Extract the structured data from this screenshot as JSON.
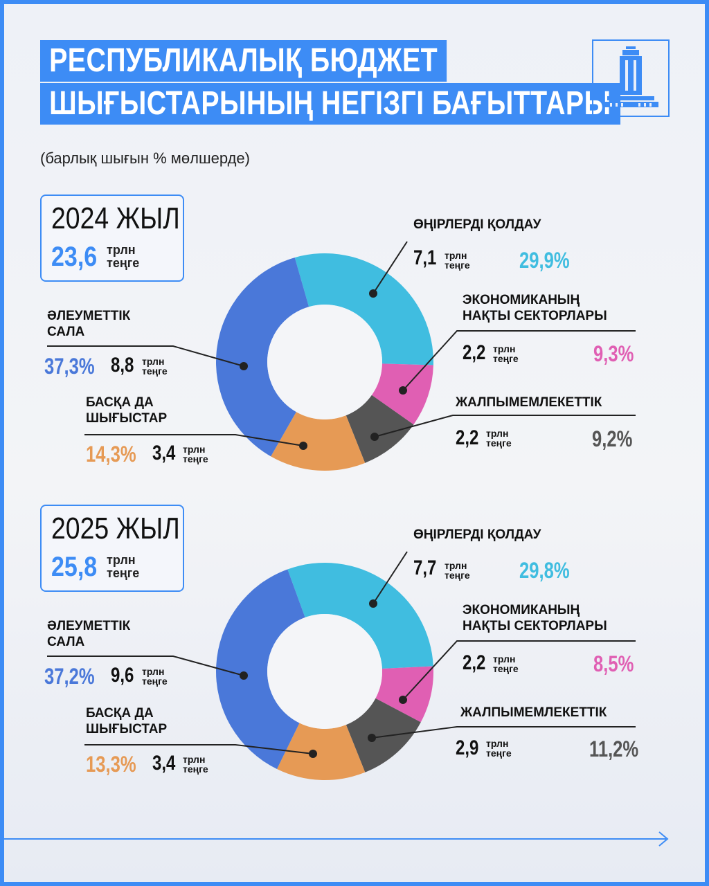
{
  "title": {
    "line1": "РЕСПУБЛИКАЛЫҚ БЮДЖЕТ",
    "line2": "ШЫҒЫСТАРЫНЫҢ НЕГІЗГІ БАҒЫТТАРЫ"
  },
  "subtitle": "(барлық шығын % мөлшерде)",
  "colors": {
    "accent": "#3d8cf5",
    "regions": "#40bde0",
    "economy": "#e05fb3",
    "general": "#555555",
    "other": "#e69a55",
    "social": "#4a78d9"
  },
  "years": [
    {
      "year_label": "2024 ЖЫЛ",
      "total": "23,6",
      "unit": "трлн\nтеңге"
    },
    {
      "year_label": "2025 ЖЫЛ",
      "total": "25,8",
      "unit": "трлн\nтеңге"
    }
  ],
  "labels": {
    "regions": "ӨҢІРЛЕРДІ ҚОЛДАУ",
    "economy": "ЭКОНОМИКАНЫҢ\nНАҚТЫ СЕКТОРЛАРЫ",
    "general": "ЖАЛПЫМЕМЛЕКЕТТІК",
    "other": "БАСҚА ДА\nШЫҒЫСТАР",
    "social": "ӘЛЕУМЕТТІК\nСАЛА"
  },
  "chart_data": [
    {
      "type": "pie",
      "title": "2024 ЖЫЛ",
      "categories": [
        "ӨҢІРЛЕРДІ ҚОЛДАУ",
        "ЭКОНОМИКАНЫҢ НАҚТЫ СЕКТОРЛАРЫ",
        "ЖАЛПЫМЕМЛЕКЕТТІК",
        "БАСҚА ДА ШЫҒЫСТАР",
        "ӘЛЕУМЕТТІК САЛА"
      ],
      "values": [
        29.9,
        9.3,
        9.2,
        14.3,
        37.3
      ],
      "amounts": [
        7.1,
        2.2,
        2.2,
        3.4,
        8.8
      ],
      "pct_labels": [
        "29,9%",
        "9,3%",
        "9,2%",
        "14,3%",
        "37,3%"
      ],
      "amount_labels": [
        "7,1",
        "2,2",
        "2,2",
        "3,4",
        "8,8"
      ]
    },
    {
      "type": "pie",
      "title": "2025 ЖЫЛ",
      "categories": [
        "ӨҢІРЛЕРДІ ҚОЛДАУ",
        "ЭКОНОМИКАНЫҢ НАҚТЫ СЕКТОРЛАРЫ",
        "ЖАЛПЫМЕМЛЕКЕТТІК",
        "БАСҚА ДА ШЫҒЫСТАР",
        "ӘЛЕУМЕТТІК САЛА"
      ],
      "values": [
        29.8,
        8.5,
        11.2,
        13.3,
        37.2
      ],
      "amounts": [
        7.7,
        2.2,
        2.9,
        3.4,
        9.6
      ],
      "pct_labels": [
        "29,8%",
        "8,5%",
        "11,2%",
        "13,3%",
        "37,2%"
      ],
      "amount_labels": [
        "7,7",
        "2,2",
        "2,9",
        "3,4",
        "9,6"
      ]
    }
  ]
}
